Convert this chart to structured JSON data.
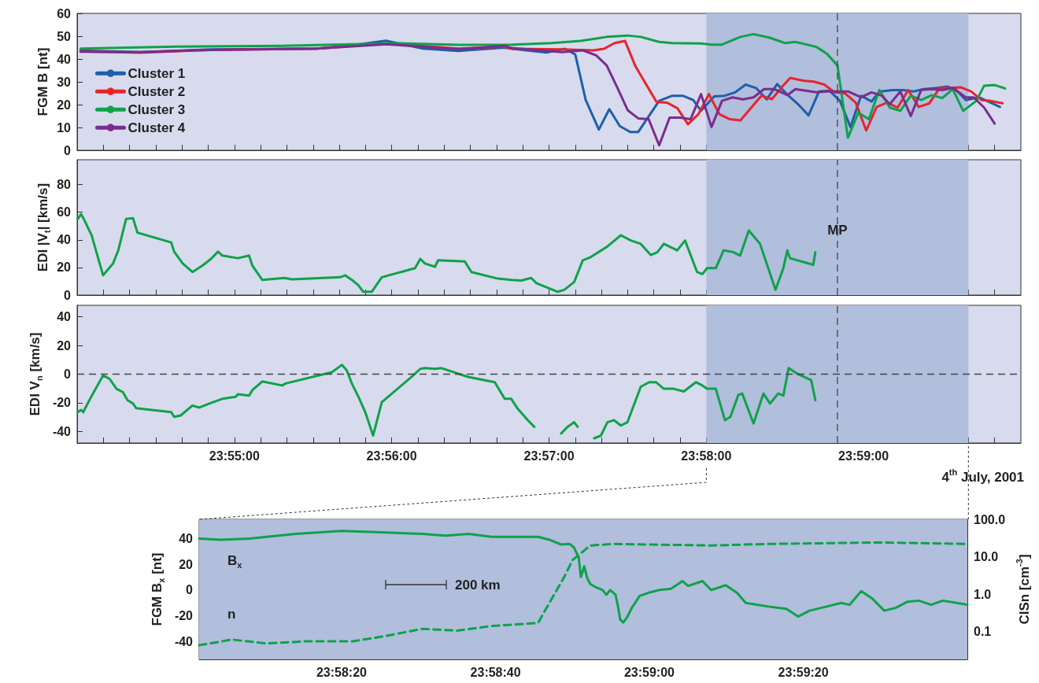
{
  "chart_data": [
    {
      "type": "line",
      "ylabel": "FGM B [nt]",
      "xlim": [
        23.9,
        24.0
      ],
      "xticks": [
        {
          "value": 23.90278,
          "label": null
        },
        {
          "value": 23.90556,
          "label": null
        },
        {
          "value": 23.90833,
          "label": null
        },
        {
          "value": 23.91111,
          "label": null
        },
        {
          "value": 23.91389,
          "label": null
        },
        {
          "value": 23.91667,
          "label": null
        },
        {
          "value": 23.91944,
          "label": null
        },
        {
          "value": 23.92222,
          "label": null
        },
        {
          "value": 23.925,
          "label": null
        },
        {
          "value": 23.92778,
          "label": null
        },
        {
          "value": 23.93056,
          "label": null
        },
        {
          "value": 23.93333,
          "label": null
        },
        {
          "value": 23.93611,
          "label": null
        },
        {
          "value": 23.93889,
          "label": null
        },
        {
          "value": 23.94167,
          "label": null
        },
        {
          "value": 23.94444,
          "label": null
        },
        {
          "value": 23.94722,
          "label": null
        },
        {
          "value": 23.95,
          "label": null
        },
        {
          "value": 23.95278,
          "label": null
        },
        {
          "value": 23.95556,
          "label": null
        },
        {
          "value": 23.95833,
          "label": null
        },
        {
          "value": 23.96111,
          "label": null
        },
        {
          "value": 23.96389,
          "label": null
        },
        {
          "value": 23.96667,
          "label": null
        },
        {
          "value": 23.96944,
          "label": null
        },
        {
          "value": 23.97222,
          "label": null
        },
        {
          "value": 23.975,
          "label": null
        },
        {
          "value": 23.97778,
          "label": null
        },
        {
          "value": 23.98056,
          "label": null
        },
        {
          "value": 23.98333,
          "label": null
        },
        {
          "value": 23.98611,
          "label": null
        },
        {
          "value": 23.98889,
          "label": null
        },
        {
          "value": 23.99167,
          "label": null
        },
        {
          "value": 23.99444,
          "label": null
        },
        {
          "value": 23.99722,
          "label": null
        }
      ],
      "ylim": [
        0,
        60
      ],
      "yticks": [
        0,
        10,
        20,
        30,
        40,
        50,
        60
      ],
      "tick_labels": "y",
      "legend": "left",
      "marker": "none",
      "series": [
        {
          "name": "Cluster 1",
          "color": "#1f5fa8",
          "x": [
            23.90036,
            23.90672,
            23.91419,
            23.92542,
            23.92917,
            23.93272,
            23.93664,
            23.94039,
            23.94525,
            23.94611,
            23.94972,
            23.95167,
            23.95278,
            23.95389,
            23.95528,
            23.95639,
            23.9575,
            23.95861,
            23.95944,
            23.96167,
            23.96306,
            23.96417,
            23.96528,
            23.96611,
            23.9675,
            23.96861,
            23.96972,
            23.97083,
            23.97194,
            23.97306,
            23.97417,
            23.97528,
            23.97639,
            23.9775,
            23.97861,
            23.97972,
            23.98083,
            23.98194,
            23.98306,
            23.98417,
            23.985,
            23.98639,
            23.9875,
            23.98861,
            23.98972,
            23.99111,
            23.99222,
            23.99306,
            23.99417,
            23.99556,
            23.99778
          ],
          "values": [
            43.7,
            43,
            44.2,
            44.6,
            46,
            48,
            44.6,
            43.5,
            45,
            44.5,
            42.8,
            44.5,
            42,
            22,
            9.1,
            18,
            10.6,
            8,
            8,
            21.7,
            23.9,
            23.9,
            22,
            17.3,
            23.6,
            23.9,
            25.4,
            28.8,
            27.3,
            22.3,
            29,
            24.3,
            20.2,
            15.3,
            25.8,
            26.1,
            21.7,
            10.2,
            23.9,
            21.4,
            25.7,
            26.4,
            26.4,
            25.8,
            26.8,
            27.3,
            27.9,
            26.8,
            22,
            23.2,
            19
          ]
        },
        {
          "name": "Cluster 2",
          "color": "#e8242b",
          "x": [
            23.90036,
            23.90672,
            23.91419,
            23.92542,
            23.93289,
            23.94039,
            23.94525,
            23.94611,
            23.95139,
            23.95472,
            23.95583,
            23.95694,
            23.95806,
            23.95917,
            23.96028,
            23.96139,
            23.9625,
            23.96361,
            23.96472,
            23.96583,
            23.96694,
            23.96806,
            23.96917,
            23.97028,
            23.9725,
            23.97361,
            23.97472,
            23.97556,
            23.97694,
            23.97806,
            23.97917,
            23.98028,
            23.98139,
            23.9825,
            23.98361,
            23.98472,
            23.98583,
            23.98694,
            23.98806,
            23.98917,
            23.99028,
            23.99139,
            23.9925,
            23.99361,
            23.99472,
            23.99583,
            23.99667,
            23.99806
          ],
          "values": [
            43.4,
            42.8,
            44,
            44.6,
            46.9,
            44.6,
            45.4,
            44.5,
            44.2,
            43.8,
            44.5,
            47,
            47.9,
            36.7,
            29,
            21.2,
            20.9,
            18.4,
            11.4,
            15.8,
            24.6,
            15.8,
            13.6,
            13.1,
            23.9,
            22.4,
            27.9,
            31.7,
            30.5,
            30.1,
            28.8,
            25.4,
            24.9,
            20.9,
            8.7,
            19,
            20.9,
            18.7,
            26.4,
            19,
            20.5,
            27.3,
            27.3,
            27.6,
            25.8,
            22,
            21.7,
            20.6
          ]
        },
        {
          "name": "Cluster 3",
          "color": "#0ea24a",
          "x": [
            23.90036,
            23.91047,
            23.92169,
            23.92917,
            23.93403,
            23.94039,
            23.94611,
            23.95028,
            23.95333,
            23.95611,
            23.95833,
            23.95972,
            23.96167,
            23.96306,
            23.96611,
            23.96722,
            23.96833,
            23.97028,
            23.97167,
            23.97333,
            23.975,
            23.97611,
            23.97833,
            23.97944,
            23.98056,
            23.98167,
            23.98278,
            23.98389,
            23.985,
            23.98611,
            23.98722,
            23.98833,
            23.98944,
            23.99056,
            23.99167,
            23.99278,
            23.99389,
            23.99528,
            23.99611,
            23.99722,
            23.99833
          ],
          "values": [
            44.6,
            45.4,
            45.8,
            46.5,
            46.9,
            46.2,
            46.3,
            47,
            47.9,
            49.7,
            50.3,
            49.7,
            47.5,
            47,
            46.8,
            46.3,
            46.3,
            49.7,
            50.9,
            49.4,
            47,
            47.5,
            45.3,
            42.3,
            37.2,
            5.5,
            16.5,
            13.6,
            26.4,
            18.7,
            17.3,
            23.9,
            22,
            24.2,
            22.9,
            26.8,
            17.3,
            21.7,
            28.3,
            28.6,
            27.1
          ]
        },
        {
          "name": "Cluster 4",
          "color": "#7a2d8e",
          "x": [
            23.90036,
            23.90672,
            23.91419,
            23.92542,
            23.93272,
            23.94039,
            23.94525,
            23.94611,
            23.95139,
            23.95361,
            23.955,
            23.95611,
            23.95722,
            23.95833,
            23.95944,
            23.96056,
            23.96167,
            23.96278,
            23.96389,
            23.965,
            23.96611,
            23.96722,
            23.96833,
            23.96944,
            23.97056,
            23.97167,
            23.97278,
            23.97389,
            23.97528,
            23.97611,
            23.97722,
            23.97833,
            23.97944,
            23.98056,
            23.98167,
            23.98306,
            23.98417,
            23.98528,
            23.98611,
            23.98722,
            23.98833,
            23.98944,
            23.99056,
            23.99167,
            23.99278,
            23.99417,
            23.995,
            23.99611,
            23.99722
          ],
          "values": [
            43.2,
            43,
            44,
            44.6,
            46.5,
            44.3,
            45.8,
            44.8,
            43,
            43.8,
            41.6,
            37.2,
            27.6,
            17.6,
            14,
            13.6,
            2.2,
            14.3,
            14.3,
            13.6,
            24.6,
            10.2,
            21.7,
            23.2,
            22.3,
            23.2,
            26.8,
            26.8,
            24.2,
            26.8,
            26.1,
            25.4,
            25.8,
            25.8,
            25.8,
            23.2,
            25.4,
            23.9,
            20.2,
            25.8,
            15,
            26.5,
            26.8,
            26.4,
            27.3,
            23.2,
            23.2,
            18.7,
            11.7
          ]
        }
      ],
      "bands": [
        {
          "axis": "x",
          "from": 23.96667,
          "to": 23.99444,
          "color": "#b1bedc"
        }
      ],
      "ref_lines": [
        {
          "axis": "x",
          "value": 23.98056,
          "line_style": "dashed",
          "color": "#444444"
        }
      ]
    },
    {
      "type": "line",
      "ylabel": "EDI |V$_{t}$| [km/s]",
      "xlim": [
        23.9,
        24.0
      ],
      "xticks": [
        {
          "value": 23.90278,
          "label": null
        },
        {
          "value": 23.90556,
          "label": null
        },
        {
          "value": 23.90833,
          "label": null
        },
        {
          "value": 23.91111,
          "label": null
        },
        {
          "value": 23.91389,
          "label": null
        },
        {
          "value": 23.91667,
          "label": null
        },
        {
          "value": 23.91944,
          "label": null
        },
        {
          "value": 23.92222,
          "label": null
        },
        {
          "value": 23.925,
          "label": null
        },
        {
          "value": 23.92778,
          "label": null
        },
        {
          "value": 23.93056,
          "label": null
        },
        {
          "value": 23.93333,
          "label": null
        },
        {
          "value": 23.93611,
          "label": null
        },
        {
          "value": 23.93889,
          "label": null
        },
        {
          "value": 23.94167,
          "label": null
        },
        {
          "value": 23.94444,
          "label": null
        },
        {
          "value": 23.94722,
          "label": null
        },
        {
          "value": 23.95,
          "label": null
        },
        {
          "value": 23.95278,
          "label": null
        },
        {
          "value": 23.95556,
          "label": null
        },
        {
          "value": 23.95833,
          "label": null
        },
        {
          "value": 23.96111,
          "label": null
        },
        {
          "value": 23.96389,
          "label": null
        },
        {
          "value": 23.96667,
          "label": null
        },
        {
          "value": 23.96944,
          "label": null
        },
        {
          "value": 23.97222,
          "label": null
        },
        {
          "value": 23.975,
          "label": null
        },
        {
          "value": 23.97778,
          "label": null
        },
        {
          "value": 23.98056,
          "label": null
        },
        {
          "value": 23.98333,
          "label": null
        },
        {
          "value": 23.98611,
          "label": null
        },
        {
          "value": 23.98889,
          "label": null
        },
        {
          "value": 23.99167,
          "label": null
        },
        {
          "value": 23.99444,
          "label": null
        },
        {
          "value": 23.99722,
          "label": null
        }
      ],
      "ylim": [
        0,
        98
      ],
      "yticks": [
        0,
        20,
        40,
        60,
        80
      ],
      "tick_labels": "y",
      "marker": "none",
      "series": [
        {
          "color": "#0ea24a",
          "x": [
            23.90006,
            23.90042,
            23.90064,
            23.90156,
            23.90169,
            23.90275,
            23.90381,
            23.90436,
            23.90519,
            23.90592,
            23.90639,
            23.90997,
            23.91028,
            23.91119,
            23.91222,
            23.91328,
            23.91419,
            23.91492,
            23.91539,
            23.91703,
            23.91822,
            23.91856,
            23.91961,
            23.92194,
            23.92278,
            23.92786,
            23.92842,
            23.92911,
            23.92981,
            23.93031,
            23.93122,
            23.93228,
            23.93581,
            23.93636,
            23.93686,
            23.93792,
            23.93825,
            23.94108,
            23.94178,
            23.94458,
            23.946,
            23.94706,
            23.94811,
            23.94867,
            23.95092,
            23.95161,
            23.95267,
            23.95358,
            23.95444,
            23.95619,
            23.95761,
            23.95867,
            23.95972,
            23.96078,
            23.96147,
            23.96217,
            23.96358,
            23.96442,
            23.96569,
            23.96625,
            23.96675,
            23.96767,
            23.9685,
            23.96956,
            23.97025,
            23.97117,
            23.97236,
            23.974,
            23.97483,
            23.97525,
            23.97553,
            23.978,
            23.97822
          ],
          "values": [
            55,
            58.6,
            56,
            43,
            39.5,
            14.3,
            22.9,
            32.4,
            55.2,
            55.7,
            45.2,
            38.1,
            31.4,
            22.9,
            16.7,
            21.4,
            26.2,
            31.4,
            28.6,
            26.7,
            28.6,
            21.4,
            11,
            12.4,
            11.4,
            12.9,
            14.3,
            11,
            7.1,
            2.4,
            2.4,
            12.9,
            19.5,
            26.2,
            22.9,
            20.5,
            25.2,
            24.3,
            16.7,
            11.9,
            11,
            10.5,
            12.4,
            8.6,
            2.4,
            3.8,
            9.5,
            25.2,
            27.6,
            35.2,
            43.3,
            39.5,
            37.1,
            29,
            31,
            37.1,
            32.4,
            39.5,
            16.7,
            15.2,
            19.5,
            19.5,
            32.4,
            31,
            28.6,
            46.7,
            37.1,
            3.8,
            19.5,
            32.4,
            26.7,
            21.9,
            31
          ]
        }
      ],
      "bands": [
        {
          "axis": "x",
          "from": 23.96667,
          "to": 23.99444,
          "color": "#b1bedc"
        }
      ],
      "ref_lines": [
        {
          "axis": "x",
          "value": 23.98056,
          "label": "MP",
          "line_style": "dashed",
          "color": "#444444"
        }
      ]
    },
    {
      "type": "line",
      "ylabel": "EDI V$_{n}$ [km/s]",
      "xlim": [
        23.9,
        24.0
      ],
      "xticks": [
        {
          "value": 23.90278,
          "label": null
        },
        {
          "value": 23.90556,
          "label": null
        },
        {
          "value": 23.90833,
          "label": null
        },
        {
          "value": 23.91111,
          "label": null
        },
        {
          "value": 23.91389,
          "label": null
        },
        {
          "value": 23.91667,
          "label": "23:55:00"
        },
        {
          "value": 23.91944,
          "label": null
        },
        {
          "value": 23.92222,
          "label": null
        },
        {
          "value": 23.925,
          "label": null
        },
        {
          "value": 23.92778,
          "label": null
        },
        {
          "value": 23.93056,
          "label": null
        },
        {
          "value": 23.93333,
          "label": "23:56:00"
        },
        {
          "value": 23.93611,
          "label": null
        },
        {
          "value": 23.93889,
          "label": null
        },
        {
          "value": 23.94167,
          "label": null
        },
        {
          "value": 23.94444,
          "label": null
        },
        {
          "value": 23.94722,
          "label": null
        },
        {
          "value": 23.95,
          "label": "23:57:00"
        },
        {
          "value": 23.95278,
          "label": null
        },
        {
          "value": 23.95556,
          "label": null
        },
        {
          "value": 23.95833,
          "label": null
        },
        {
          "value": 23.96111,
          "label": null
        },
        {
          "value": 23.96389,
          "label": null
        },
        {
          "value": 23.96667,
          "label": "23:58:00"
        },
        {
          "value": 23.96944,
          "label": null
        },
        {
          "value": 23.97222,
          "label": null
        },
        {
          "value": 23.975,
          "label": null
        },
        {
          "value": 23.97778,
          "label": null
        },
        {
          "value": 23.98056,
          "label": null
        },
        {
          "value": 23.98333,
          "label": "23:59:00"
        },
        {
          "value": 23.98611,
          "label": null
        },
        {
          "value": 23.98889,
          "label": null
        },
        {
          "value": 23.99167,
          "label": null
        },
        {
          "value": 23.99444,
          "label": null
        },
        {
          "value": 23.99722,
          "label": null
        }
      ],
      "ylim": [
        -48,
        48
      ],
      "yticks": [
        -40,
        -20,
        0,
        20,
        40
      ],
      "marker": "none",
      "series": [
        {
          "color": "#0ea24a",
          "x": [
            23.90006,
            23.90042,
            23.90064,
            23.90156,
            23.90275,
            23.90344,
            23.90417,
            23.90486,
            23.90533,
            23.90592,
            23.90625,
            23.90997,
            23.91028,
            23.91097,
            23.91222,
            23.91294,
            23.914,
            23.91539,
            23.91681,
            23.91703,
            23.91822,
            23.91856,
            23.91961,
            23.92172,
            23.92208,
            23.927,
            23.92806,
            23.92856,
            23.92911,
            23.92981,
            23.93053,
            23.93136,
            23.93228,
            23.93544,
            23.93636,
            23.93686,
            23.93792,
            23.93861,
            23.94142,
            23.94425,
            23.94531,
            23.946,
            23.94669,
            23.94775,
            23.94844,
            23.94931,
            23.94983,
            23.95036,
            23.95128,
            23.95197,
            23.95267,
            23.95303,
            23.95358,
            23.95394,
            23.95431,
            23.95478,
            23.9555,
            23.95619,
            23.95689,
            23.95761,
            23.95831,
            23.95972,
            23.96061,
            23.96133,
            23.96217,
            23.96322,
            23.96428,
            23.96556,
            23.96625,
            23.96675,
            23.96767,
            23.96864,
            23.96922,
            23.97006,
            23.97047,
            23.97167,
            23.97272,
            23.97342,
            23.97428,
            23.97483,
            23.97539,
            23.97625,
            23.97778,
            23.97822
          ],
          "values": [
            -26.5,
            -25,
            -26.5,
            -14.9,
            -0.9,
            -3.3,
            -10.2,
            -12.6,
            -18.1,
            -20.5,
            -23.7,
            -26.5,
            -29.8,
            -28.8,
            -21.9,
            -23.3,
            -20.5,
            -17.2,
            -15.8,
            -14,
            -14.9,
            -11.2,
            -5.1,
            -7.9,
            -6.5,
            1.4,
            6.5,
            2.8,
            -6.5,
            -15.8,
            -26.5,
            -42.8,
            -19.5,
            -1.9,
            3.7,
            4.2,
            3.7,
            4.2,
            -1.9,
            -5.6,
            -17.2,
            -17.2,
            -24.2,
            -32.1,
            -36.7,
            null,
            null,
            null,
            -41.4,
            -36.7,
            -33.5,
            -36.7,
            null,
            null,
            null,
            -44.7,
            -42.8,
            -33.5,
            -32.1,
            -35.8,
            -33.5,
            -8.8,
            -5.6,
            -5.6,
            -10.2,
            -10.2,
            -12.1,
            -5.6,
            -7.9,
            -10.2,
            -10.2,
            -32.1,
            -29.8,
            -14.4,
            -13.5,
            -34.4,
            -13.5,
            -20.5,
            -13.5,
            -14.9,
            4.2,
            0.5,
            -4.2,
            -18.1
          ]
        }
      ],
      "bands": [
        {
          "axis": "x",
          "from": 23.96667,
          "to": 23.99444,
          "color": "#b1bedc"
        }
      ],
      "ref_lines": [
        {
          "axis": "x",
          "value": 23.98056,
          "line_style": "dashed",
          "color": "#444444"
        },
        {
          "axis": "y",
          "value": 0,
          "line_style": "dashed",
          "color": "#444444"
        }
      ],
      "annotations": [
        "4$^{th}$ July, 2001"
      ]
    },
    {
      "type": "line",
      "ylabel": "FGM B$_{x}$ [nt]",
      "y2label": "CISn [cm$^{-3}$]",
      "xlim": [
        23.96708,
        23.99481
      ],
      "xticks": [
        {
          "value": 23.96806,
          "label": null
        },
        {
          "value": 23.96944,
          "label": null
        },
        {
          "value": 23.97083,
          "label": null
        },
        {
          "value": 23.97222,
          "label": "23:58:20"
        },
        {
          "value": 23.97361,
          "label": null
        },
        {
          "value": 23.975,
          "label": null
        },
        {
          "value": 23.97639,
          "label": null
        },
        {
          "value": 23.97778,
          "label": "23:58:40"
        },
        {
          "value": 23.97917,
          "label": null
        },
        {
          "value": 23.98056,
          "label": null
        },
        {
          "value": 23.98194,
          "label": null
        },
        {
          "value": 23.98333,
          "label": "23:59:00"
        },
        {
          "value": 23.98472,
          "label": null
        },
        {
          "value": 23.98611,
          "label": null
        },
        {
          "value": 23.9875,
          "label": null
        },
        {
          "value": 23.98889,
          "label": "23:59:20"
        },
        {
          "value": 23.99028,
          "label": null
        },
        {
          "value": 23.99167,
          "label": null
        },
        {
          "value": 23.99306,
          "label": null
        },
        {
          "value": 23.99444,
          "label": null
        }
      ],
      "ylim": [
        -54,
        55
      ],
      "yticks": [
        -40,
        -20,
        0,
        20,
        40
      ],
      "y2lim": [
        0.018,
        100
      ],
      "y2ticks": [
        {
          "value": 0.1,
          "label": "0.1"
        },
        {
          "value": 1,
          "label": "1.0"
        },
        {
          "value": 10,
          "label": "10.0"
        },
        {
          "value": 100,
          "label": "100.0"
        }
      ],
      "log": "y2",
      "marker": "none",
      "series": [
        {
          "name": "B$_{x}$",
          "color": "#0ea24a",
          "x": [
            23.96708,
            23.96785,
            23.96889,
            23.97056,
            23.97222,
            23.97348,
            23.97514,
            23.97598,
            23.97681,
            23.97764,
            23.97931,
            23.97973,
            23.98014,
            23.98045,
            23.98061,
            23.98078,
            23.98086,
            23.98098,
            23.98109,
            23.9812,
            23.98139,
            23.98164,
            23.98178,
            23.98192,
            23.98211,
            23.9822,
            23.98228,
            23.98239,
            23.98253,
            23.9827,
            23.98298,
            23.98328,
            23.9837,
            23.98411,
            23.98453,
            23.98473,
            23.98525,
            23.98556,
            23.98609,
            23.9865,
            23.98681,
            23.98764,
            23.98828,
            23.9887,
            23.98911,
            23.98973,
            23.99025,
            23.99056,
            23.99098,
            23.99139,
            23.99181,
            23.99223,
            23.99264,
            23.99306,
            23.9935,
            23.99392,
            23.99481
          ],
          "values": [
            40,
            39.1,
            40,
            43.7,
            46,
            45,
            43.7,
            42.3,
            43.7,
            41.4,
            41.4,
            39.1,
            35.4,
            35.9,
            33.1,
            25.3,
            10.1,
            18.4,
            9.2,
            4.6,
            2.3,
            0,
            -3.7,
            0,
            -3.7,
            -12.9,
            -23,
            -25.3,
            -21.1,
            -13.8,
            -4.6,
            -2.3,
            0,
            0.9,
            6.9,
            3.2,
            6.9,
            0,
            3.7,
            -2.3,
            -10.1,
            -12.9,
            -14.7,
            -20.7,
            -16.1,
            -12.9,
            -10.1,
            -11.5,
            -0.9,
            -6.9,
            -16.1,
            -13.8,
            -9.2,
            -8.3,
            -11.5,
            -8.3,
            -11.5
          ]
        },
        {
          "name": "n",
          "color": "#0ea24a",
          "axis": "y2",
          "line_style": "dashed",
          "x": [
            23.96708,
            23.96826,
            23.96951,
            23.97098,
            23.97264,
            23.97368,
            23.97514,
            23.97639,
            23.97764,
            23.97931,
            23.98025,
            23.98056,
            23.9812,
            23.98203,
            23.98556,
            23.98764,
            23.99161,
            23.99481
          ],
          "values": [
            0.043,
            0.061,
            0.048,
            0.055,
            0.055,
            0.073,
            0.118,
            0.106,
            0.141,
            0.169,
            2.8,
            8.2,
            20,
            22,
            20,
            22,
            24,
            22
          ]
        }
      ],
      "bands": [
        {
          "axis": "x",
          "from": 23.96708,
          "to": 23.99481,
          "color": "#b1bedc"
        }
      ],
      "annotations": [
        "200 km"
      ]
    }
  ]
}
